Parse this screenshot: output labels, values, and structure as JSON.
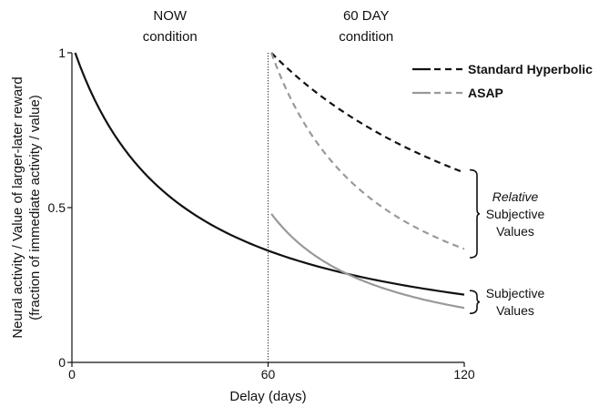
{
  "chart_data": {
    "type": "line",
    "title": "",
    "xlabel": "Delay (days)",
    "ylabel_lines": [
      "Neural activity / Value of larger-later reward",
      "(fraction of immediate activity / value)"
    ],
    "xlim": [
      0,
      120
    ],
    "ylim": [
      0,
      1
    ],
    "x_ticks": [
      {
        "value": 0,
        "label": "0"
      },
      {
        "value": 60,
        "label": "60"
      },
      {
        "value": 120,
        "label": "120"
      }
    ],
    "y_ticks": [
      {
        "value": 0,
        "label": "0"
      },
      {
        "value": 0.5,
        "label": "0.5"
      },
      {
        "value": 1,
        "label": "1"
      }
    ],
    "grid": false,
    "condition_labels": [
      {
        "lines": [
          "NOW",
          "condition"
        ],
        "x": 30
      },
      {
        "lines": [
          "60 DAY",
          "condition"
        ],
        "x": 90
      }
    ],
    "divider_x": 60,
    "series": [
      {
        "name": "Standard Hyperbolic",
        "condition": "NOW",
        "style": "solid",
        "color": "#111111",
        "k": 0.03,
        "x_start": 1,
        "x_end": 120,
        "scale": 1
      },
      {
        "name": "Standard Hyperbolic",
        "condition": "60 DAY",
        "style": "dashed",
        "color": "#111111",
        "k": 0.0107,
        "x_start": 61,
        "x_end": 120,
        "scale": 1
      },
      {
        "name": "ASAP",
        "condition": "60 DAY",
        "style": "solid",
        "color": "#999999",
        "k": 0.0293,
        "x_start": 61,
        "x_end": 120,
        "scale": 0.48
      },
      {
        "name": "ASAP",
        "condition": "60 DAY",
        "style": "dashed",
        "color": "#999999",
        "k": 0.0293,
        "x_start": 61,
        "x_end": 120,
        "scale": 1
      }
    ],
    "legend": {
      "placement": "top-right",
      "entries": [
        {
          "label": "Standard Hyperbolic",
          "color": "#111111"
        },
        {
          "label": "ASAP",
          "color": "#999999"
        }
      ]
    },
    "annotations": [
      {
        "lines": [
          "Relative",
          "Subjective",
          "Values"
        ],
        "italic_first": true,
        "brace_y": [
          0.61,
          0.35
        ]
      },
      {
        "lines": [
          "Subjective",
          "Values"
        ],
        "italic_first": false,
        "brace_y": [
          0.22,
          0.17
        ]
      }
    ]
  }
}
